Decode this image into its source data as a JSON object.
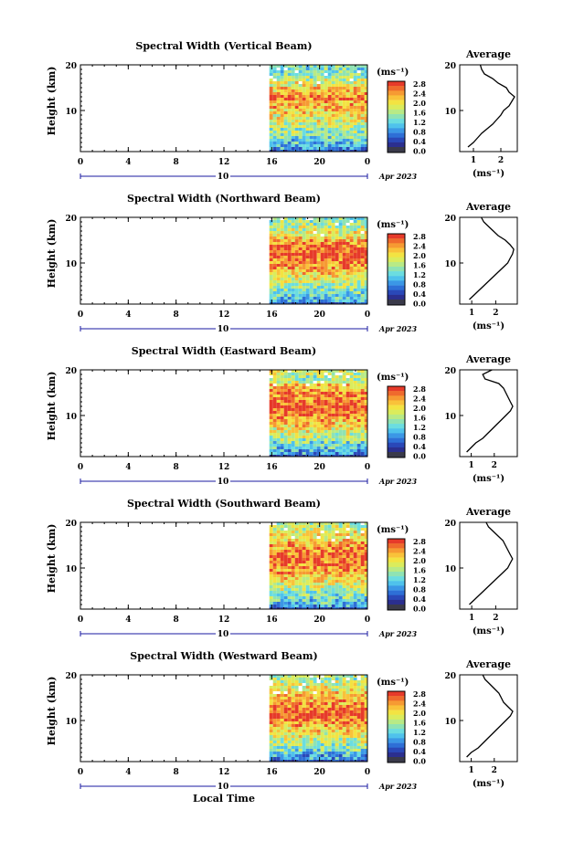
{
  "page": {
    "xlabel": "Local Time",
    "colorbar_unit": "(ms⁻¹)",
    "colorbar_ticks": [
      "2.8",
      "2.4",
      "2.0",
      "1.6",
      "1.2",
      "0.8",
      "0.4",
      "0.0"
    ],
    "avg_title": "Average",
    "avg_xlabel": "(ms⁻¹)",
    "date_label": "Apr 2023",
    "day_label": "10",
    "ylabel": "Height (km)"
  },
  "chart_data": [
    {
      "type": "heatmap",
      "title": "Spectral Width (Vertical Beam)",
      "xlabel": "Local Time",
      "ylabel": "Height (km)",
      "xlim": [
        0,
        24
      ],
      "ylim": [
        1,
        20
      ],
      "x_ticks": [
        "0",
        "4",
        "8",
        "12",
        "16",
        "20",
        "0"
      ],
      "y_ticks": [
        "20",
        "10"
      ],
      "data_start_hour": 15.8,
      "average_profile": {
        "title": "Average",
        "xlabel": "(ms⁻¹)",
        "x_ticks": [
          "1",
          "2"
        ],
        "xlim": [
          0.5,
          2.6
        ],
        "height_km": [
          2,
          3,
          4,
          5,
          6,
          7,
          8,
          9,
          10,
          11,
          12,
          13,
          14,
          15,
          16,
          17,
          18,
          19,
          20
        ],
        "values": [
          0.8,
          1.0,
          1.15,
          1.3,
          1.5,
          1.7,
          1.85,
          2.0,
          2.1,
          2.3,
          2.4,
          2.5,
          2.3,
          2.2,
          1.9,
          1.7,
          1.4,
          1.3,
          1.25
        ]
      }
    },
    {
      "type": "heatmap",
      "title": "Spectral Width (Northward Beam)",
      "xlabel": "Local Time",
      "ylabel": "Height (km)",
      "xlim": [
        0,
        24
      ],
      "ylim": [
        1,
        20
      ],
      "x_ticks": [
        "0",
        "4",
        "8",
        "12",
        "16",
        "20",
        "0"
      ],
      "y_ticks": [
        "20",
        "10"
      ],
      "data_start_hour": 15.8,
      "average_profile": {
        "title": "Average",
        "xlabel": "(ms⁻¹)",
        "x_ticks": [
          "1",
          "2"
        ],
        "xlim": [
          0.5,
          2.9
        ],
        "height_km": [
          2,
          3,
          4,
          5,
          6,
          7,
          8,
          9,
          10,
          11,
          12,
          13,
          14,
          15,
          16,
          17,
          18,
          19,
          20
        ],
        "values": [
          0.9,
          1.1,
          1.3,
          1.5,
          1.7,
          1.9,
          2.1,
          2.3,
          2.5,
          2.6,
          2.7,
          2.75,
          2.6,
          2.4,
          2.1,
          1.9,
          1.7,
          1.5,
          1.4
        ]
      }
    },
    {
      "type": "heatmap",
      "title": "Spectral Width (Eastward Beam)",
      "xlabel": "Local Time",
      "ylabel": "Height (km)",
      "xlim": [
        0,
        24
      ],
      "ylim": [
        1,
        20
      ],
      "x_ticks": [
        "0",
        "4",
        "8",
        "12",
        "16",
        "20",
        "0"
      ],
      "y_ticks": [
        "20",
        "10"
      ],
      "data_start_hour": 15.8,
      "average_profile": {
        "title": "Average",
        "xlabel": "(ms⁻¹)",
        "x_ticks": [
          "1",
          "2"
        ],
        "xlim": [
          0.5,
          3.0
        ],
        "height_km": [
          2,
          3,
          4,
          5,
          6,
          7,
          8,
          9,
          10,
          11,
          12,
          13,
          14,
          15,
          16,
          17,
          18,
          19,
          20
        ],
        "values": [
          0.8,
          1.0,
          1.2,
          1.5,
          1.7,
          1.9,
          2.1,
          2.3,
          2.5,
          2.7,
          2.8,
          2.7,
          2.6,
          2.5,
          2.4,
          2.2,
          1.6,
          1.5,
          1.9
        ]
      }
    },
    {
      "type": "heatmap",
      "title": "Spectral Width (Southward Beam)",
      "xlabel": "Local Time",
      "ylabel": "Height (km)",
      "xlim": [
        0,
        24
      ],
      "ylim": [
        1,
        20
      ],
      "x_ticks": [
        "0",
        "4",
        "8",
        "12",
        "16",
        "20",
        "0"
      ],
      "y_ticks": [
        "20",
        "10"
      ],
      "data_start_hour": 15.8,
      "average_profile": {
        "title": "Average",
        "xlabel": "(ms⁻¹)",
        "x_ticks": [
          "1",
          "2"
        ],
        "xlim": [
          0.5,
          2.9
        ],
        "height_km": [
          2,
          3,
          4,
          5,
          6,
          7,
          8,
          9,
          10,
          11,
          12,
          13,
          14,
          15,
          16,
          17,
          18,
          19,
          20
        ],
        "values": [
          0.9,
          1.1,
          1.3,
          1.5,
          1.7,
          1.9,
          2.1,
          2.3,
          2.5,
          2.6,
          2.7,
          2.6,
          2.5,
          2.4,
          2.3,
          2.1,
          1.9,
          1.7,
          1.6
        ]
      }
    },
    {
      "type": "heatmap",
      "title": "Spectral Width (Westward Beam)",
      "xlabel": "Local Time",
      "ylabel": "Height (km)",
      "xlim": [
        0,
        24
      ],
      "ylim": [
        1,
        20
      ],
      "x_ticks": [
        "0",
        "4",
        "8",
        "12",
        "16",
        "20",
        "0"
      ],
      "y_ticks": [
        "20",
        "10"
      ],
      "data_start_hour": 15.8,
      "average_profile": {
        "title": "Average",
        "xlabel": "(ms⁻¹)",
        "x_ticks": [
          "1",
          "2"
        ],
        "xlim": [
          0.5,
          3.0
        ],
        "height_km": [
          2,
          3,
          4,
          5,
          6,
          7,
          8,
          9,
          10,
          11,
          12,
          13,
          14,
          15,
          16,
          17,
          18,
          19,
          20
        ],
        "values": [
          0.8,
          1.0,
          1.3,
          1.5,
          1.7,
          1.9,
          2.1,
          2.3,
          2.5,
          2.7,
          2.8,
          2.6,
          2.4,
          2.3,
          2.2,
          2.0,
          1.8,
          1.6,
          1.5
        ]
      }
    }
  ]
}
